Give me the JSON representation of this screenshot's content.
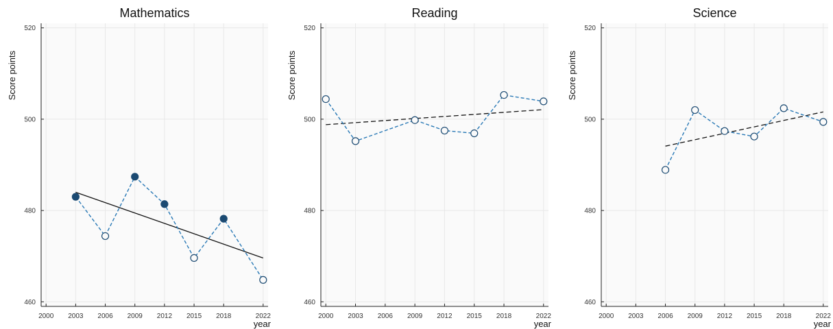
{
  "chart_data": [
    {
      "type": "line",
      "title": "Mathematics",
      "xlabel": "year",
      "ylabel": "Score points",
      "x_ticks": [
        "2000",
        "2003",
        "2006",
        "2009",
        "2012",
        "2015",
        "2018",
        "2022"
      ],
      "y_ticks": [
        "460",
        "480",
        "500",
        "520"
      ],
      "ylim": [
        459,
        521
      ],
      "xlim": [
        1999.5,
        2022.5
      ],
      "grid": true,
      "series": [
        {
          "points": [
            {
              "x": 2003,
              "y": 483.0,
              "filled": true
            },
            {
              "x": 2006,
              "y": 474.4,
              "filled": false
            },
            {
              "x": 2009,
              "y": 487.4,
              "filled": true
            },
            {
              "x": 2012,
              "y": 481.4,
              "filled": true
            },
            {
              "x": 2015,
              "y": 469.6,
              "filled": false
            },
            {
              "x": 2018,
              "y": 478.2,
              "filled": true
            },
            {
              "x": 2022,
              "y": 464.8,
              "filled": false
            }
          ]
        }
      ],
      "trend": {
        "x": [
          2003,
          2022
        ],
        "y": [
          484.0,
          469.6
        ],
        "style": "solid"
      }
    },
    {
      "type": "line",
      "title": "Reading",
      "xlabel": "year",
      "ylabel": "Score points",
      "x_ticks": [
        "2000",
        "2003",
        "2006",
        "2009",
        "2012",
        "2015",
        "2018",
        "2022"
      ],
      "y_ticks": [
        "460",
        "480",
        "500",
        "520"
      ],
      "ylim": [
        459,
        521
      ],
      "xlim": [
        1999.5,
        2022.5
      ],
      "grid": true,
      "series": [
        {
          "points": [
            {
              "x": 2000,
              "y": 504.4,
              "filled": false
            },
            {
              "x": 2003,
              "y": 495.2,
              "filled": false
            },
            {
              "x": 2009,
              "y": 499.8,
              "filled": false
            },
            {
              "x": 2012,
              "y": 497.5,
              "filled": false
            },
            {
              "x": 2015,
              "y": 496.9,
              "filled": false
            },
            {
              "x": 2018,
              "y": 505.3,
              "filled": false
            },
            {
              "x": 2022,
              "y": 503.9,
              "filled": false
            }
          ]
        }
      ],
      "trend": {
        "x": [
          2000,
          2022
        ],
        "y": [
          498.8,
          502.1
        ],
        "style": "dashed"
      }
    },
    {
      "type": "line",
      "title": "Science",
      "xlabel": "year",
      "ylabel": "Score points",
      "x_ticks": [
        "2000",
        "2003",
        "2006",
        "2009",
        "2012",
        "2015",
        "2018",
        "2022"
      ],
      "y_ticks": [
        "460",
        "480",
        "500",
        "520"
      ],
      "ylim": [
        459,
        521
      ],
      "xlim": [
        1999.5,
        2022.5
      ],
      "grid": true,
      "series": [
        {
          "points": [
            {
              "x": 2006,
              "y": 488.9,
              "filled": false
            },
            {
              "x": 2009,
              "y": 502.0,
              "filled": false
            },
            {
              "x": 2012,
              "y": 497.4,
              "filled": false
            },
            {
              "x": 2015,
              "y": 496.2,
              "filled": false
            },
            {
              "x": 2018,
              "y": 502.4,
              "filled": false
            },
            {
              "x": 2022,
              "y": 499.4,
              "filled": false
            }
          ]
        }
      ],
      "trend": {
        "x": [
          2006,
          2022
        ],
        "y": [
          494.1,
          501.6
        ],
        "style": "dashed"
      }
    }
  ],
  "colors": {
    "series_line": "#2878b5",
    "marker_fill": "#1b4a72",
    "marker_stroke": "#1b4a72",
    "trend": "#111111",
    "plot_bg": "#fafafa",
    "grid": "#e8e8e8"
  }
}
